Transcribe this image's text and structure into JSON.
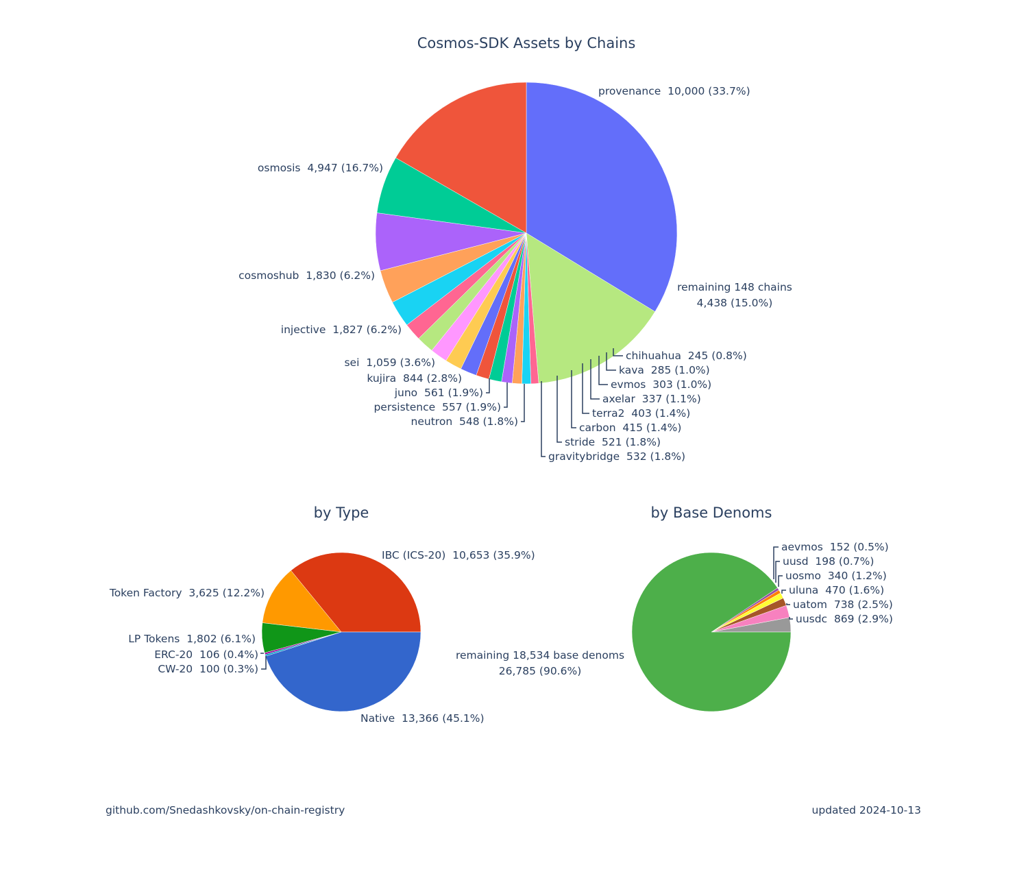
{
  "footer": {
    "source": "github.com/Snedashkovsky/on-chain-registry",
    "updated": "updated 2024-10-13"
  },
  "chart_data": [
    {
      "type": "pie",
      "title": "Cosmos-SDK Assets by Chains",
      "direction": "clockwise",
      "start_angle_deg": 90,
      "slices": [
        {
          "label": "provenance",
          "value": 10000,
          "display": "10,000 (33.7%)",
          "color": "#636efa"
        },
        {
          "label": "remaining 148 chains",
          "value": 4438,
          "display": "4,438 (15.0%)",
          "color": "#b6e880"
        },
        {
          "label": "chihuahua",
          "value": 245,
          "display": "245 (0.8%)",
          "color": "#ff6692"
        },
        {
          "label": "kava",
          "value": 285,
          "display": "285 (1.0%)",
          "color": "#19d3f3"
        },
        {
          "label": "evmos",
          "value": 303,
          "display": "303 (1.0%)",
          "color": "#ffa15a"
        },
        {
          "label": "axelar",
          "value": 337,
          "display": "337 (1.1%)",
          "color": "#ab63fa"
        },
        {
          "label": "terra2",
          "value": 403,
          "display": "403 (1.4%)",
          "color": "#00cc96"
        },
        {
          "label": "carbon",
          "value": 415,
          "display": "415 (1.4%)",
          "color": "#ef553b"
        },
        {
          "label": "stride",
          "value": 521,
          "display": "521 (1.8%)",
          "color": "#636efa"
        },
        {
          "label": "gravitybridge",
          "value": 532,
          "display": "532 (1.8%)",
          "color": "#fecb52"
        },
        {
          "label": "neutron",
          "value": 548,
          "display": "548 (1.8%)",
          "color": "#ff97ff"
        },
        {
          "label": "persistence",
          "value": 557,
          "display": "557 (1.9%)",
          "color": "#b6e880"
        },
        {
          "label": "juno",
          "value": 561,
          "display": "561 (1.9%)",
          "color": "#ff6692"
        },
        {
          "label": "kujira",
          "value": 844,
          "display": "844 (2.8%)",
          "color": "#19d3f3"
        },
        {
          "label": "sei",
          "value": 1059,
          "display": "1,059 (3.6%)",
          "color": "#ffa15a"
        },
        {
          "label": "injective",
          "value": 1827,
          "display": "1,827 (6.2%)",
          "color": "#ab63fa"
        },
        {
          "label": "cosmoshub",
          "value": 1830,
          "display": "1,830 (6.2%)",
          "color": "#00cc96"
        },
        {
          "label": "osmosis",
          "value": 4947,
          "display": "4,947 (16.7%)",
          "color": "#ef553b"
        }
      ]
    },
    {
      "type": "pie",
      "title": "by Type",
      "direction": "counterclockwise",
      "start_angle_deg": 0,
      "slices": [
        {
          "label": "IBC (ICS-20)",
          "value": 10653,
          "display": "10,653 (35.9%)",
          "color": "#dc3912"
        },
        {
          "label": "Token Factory",
          "value": 3625,
          "display": "3,625 (12.2%)",
          "color": "#ff9900"
        },
        {
          "label": "LP Tokens",
          "value": 1802,
          "display": "1,802 (6.1%)",
          "color": "#109618"
        },
        {
          "label": "ERC-20",
          "value": 106,
          "display": "106 (0.4%)",
          "color": "#990099"
        },
        {
          "label": "CW-20",
          "value": 100,
          "display": "100 (0.3%)",
          "color": "#0099c6"
        },
        {
          "label": "Native",
          "value": 13366,
          "display": "13,366 (45.1%)",
          "color": "#3366cc"
        }
      ]
    },
    {
      "type": "pie",
      "title": "by Base Denoms",
      "direction": "counterclockwise",
      "start_angle_deg": 0,
      "slices": [
        {
          "label": "uusdc",
          "value": 869,
          "display": "869 (2.9%)",
          "color": "#999999"
        },
        {
          "label": "uatom",
          "value": 738,
          "display": "738 (2.5%)",
          "color": "#f781bf"
        },
        {
          "label": "uluna",
          "value": 470,
          "display": "470 (1.6%)",
          "color": "#a65628"
        },
        {
          "label": "uosmo",
          "value": 340,
          "display": "340 (1.2%)",
          "color": "#ffff33"
        },
        {
          "label": "uusd",
          "value": 198,
          "display": "198 (0.7%)",
          "color": "#ff7f00"
        },
        {
          "label": "aevmos",
          "value": 152,
          "display": "152 (0.5%)",
          "color": "#984ea3"
        },
        {
          "label": "remaining 18,534 base denoms",
          "value": 26785,
          "display": "26,785 (90.6%)",
          "color": "#4daf4a"
        }
      ]
    }
  ]
}
